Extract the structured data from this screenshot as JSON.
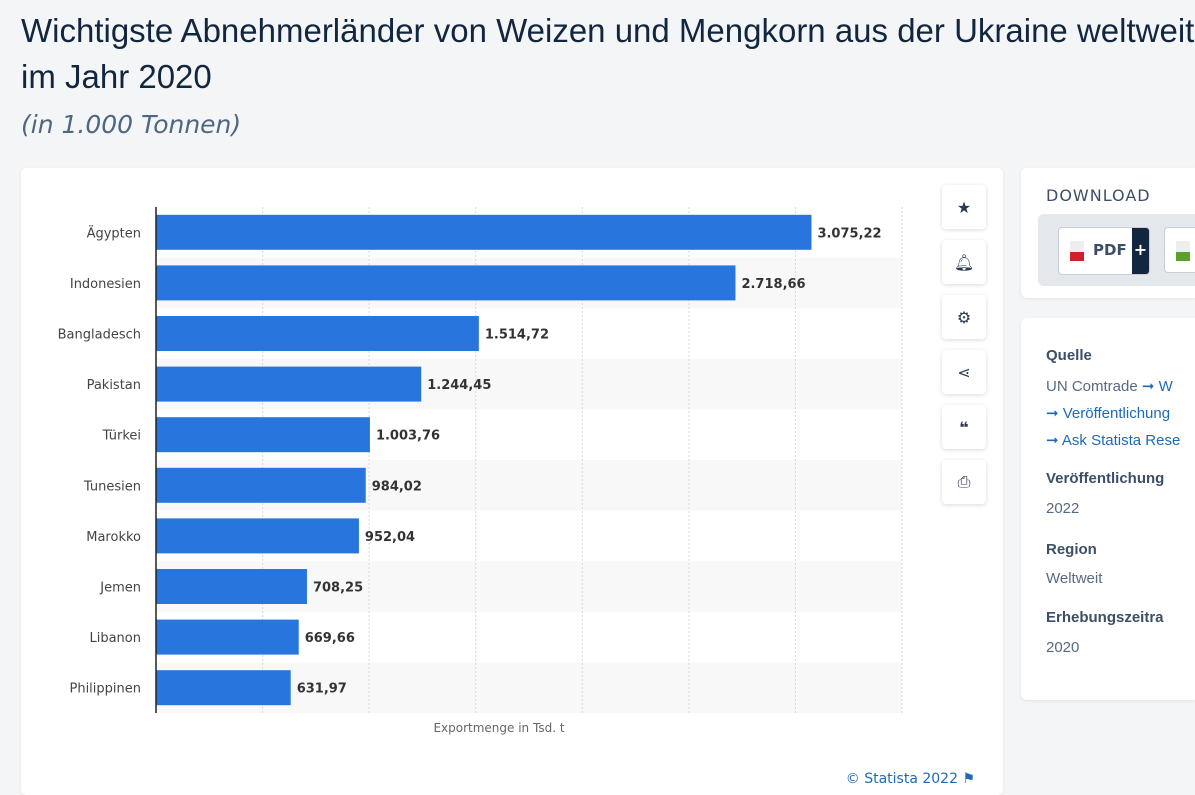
{
  "title": "Wichtigste Abnehmerländer von Weizen und Mengkorn aus der Ukraine weltweit im Jahr 2020",
  "subtitle": "(in 1.000 Tonnen)",
  "chart_data": {
    "type": "bar",
    "orientation": "horizontal",
    "categories": [
      "Ägypten",
      "Indonesien",
      "Bangladesch",
      "Pakistan",
      "Türkei",
      "Tunesien",
      "Marokko",
      "Jemen",
      "Libanon",
      "Philippinen"
    ],
    "values": [
      3075.22,
      2718.66,
      1514.72,
      1244.45,
      1003.76,
      984.02,
      952.04,
      708.25,
      669.66,
      631.97
    ],
    "data_labels": [
      "3.075,22",
      "2.718,66",
      "1.514,72",
      "1.244,45",
      "1.003,76",
      "984,02",
      "952,04",
      "708,25",
      "669,66",
      "631,97"
    ],
    "xlabel": "Exportmenge in Tsd. t",
    "xlim": [
      0,
      3500
    ],
    "grid": true,
    "bar_color": "#2876dd"
  },
  "credit": "© Statista 2022",
  "tools": [
    "star-icon",
    "bell-icon",
    "gear-icon",
    "share-icon",
    "quote-icon",
    "print-icon"
  ],
  "download": {
    "heading": "DOWNLOAD",
    "pdf": "PDF",
    "plus": "+"
  },
  "info": {
    "source_label": "Quelle",
    "source": "UN Comtrade",
    "source_link": "W",
    "link1": "Veröffentlichung",
    "link2": "Ask Statista Rese",
    "pub_label": "Veröffentlichung",
    "pub": "2022",
    "region_label": "Region",
    "region": "Weltweit",
    "period_label": "Erhebungszeitra",
    "period": "2020"
  }
}
